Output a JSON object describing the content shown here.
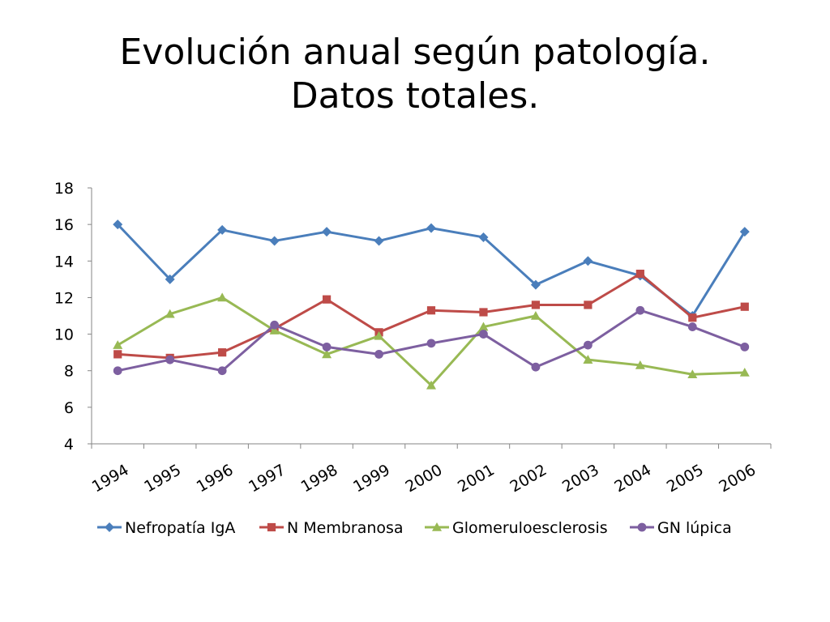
{
  "slide": {
    "title_line1": "Evolución anual según patología.",
    "title_line2": "Datos totales."
  },
  "chart_data": {
    "type": "line",
    "title": "Evolución anual según patología. Datos totales.",
    "xlabel": "",
    "ylabel": "",
    "ylim": [
      4,
      18
    ],
    "yticks": [
      4,
      6,
      8,
      10,
      12,
      14,
      16,
      18
    ],
    "grid": false,
    "legend_position": "bottom",
    "categories": [
      "1994",
      "1995",
      "1996",
      "1997",
      "1998",
      "1999",
      "2000",
      "2001",
      "2002",
      "2003",
      "2004",
      "2005",
      "2006"
    ],
    "series": [
      {
        "name": "Nefropatía IgA",
        "color": "#4a7ebb",
        "marker": "diamond",
        "values": [
          16.0,
          13.0,
          15.7,
          15.1,
          15.6,
          15.1,
          15.8,
          15.3,
          12.7,
          14.0,
          13.2,
          11.0,
          15.6
        ]
      },
      {
        "name": "N Membranosa",
        "color": "#be4b48",
        "marker": "square",
        "values": [
          8.9,
          8.7,
          9.0,
          10.3,
          11.9,
          10.1,
          11.3,
          11.2,
          11.6,
          11.6,
          13.3,
          10.9,
          11.5
        ]
      },
      {
        "name": "Glomeruloesclerosis",
        "color": "#98b954",
        "marker": "triangle",
        "values": [
          9.4,
          11.1,
          12.0,
          10.2,
          8.9,
          9.9,
          7.2,
          10.4,
          11.0,
          8.6,
          8.3,
          7.8,
          7.9
        ]
      },
      {
        "name": "GN lúpica",
        "color": "#7d5fa0",
        "marker": "circle",
        "values": [
          8.0,
          8.6,
          8.0,
          10.5,
          9.3,
          8.9,
          9.5,
          10.0,
          8.2,
          9.4,
          11.3,
          10.4,
          9.3
        ]
      }
    ]
  }
}
